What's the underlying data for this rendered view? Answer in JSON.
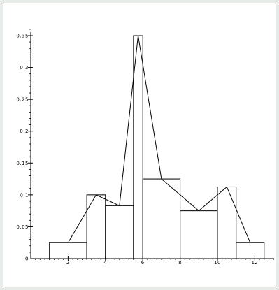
{
  "chart_data": {
    "type": "histogram",
    "title": "",
    "xlabel": "",
    "ylabel": "",
    "xlim": [
      0,
      13
    ],
    "ylim": [
      0,
      0.36
    ],
    "bars": [
      {
        "x0": 1.0,
        "x1": 3.0,
        "height": 0.025
      },
      {
        "x0": 3.0,
        "x1": 4.0,
        "height": 0.1
      },
      {
        "x0": 4.0,
        "x1": 5.5,
        "height": 0.083
      },
      {
        "x0": 5.5,
        "x1": 6.0,
        "height": 0.35
      },
      {
        "x0": 6.0,
        "x1": 8.0,
        "height": 0.125
      },
      {
        "x0": 8.0,
        "x1": 10.0,
        "height": 0.075
      },
      {
        "x0": 10.0,
        "x1": 11.0,
        "height": 0.1125
      },
      {
        "x0": 11.0,
        "x1": 12.5,
        "height": 0.025
      }
    ],
    "polygon": {
      "x": [
        2.0,
        3.5,
        4.75,
        5.75,
        7.0,
        9.0,
        10.5,
        11.75
      ],
      "y": [
        0.025,
        0.1,
        0.083,
        0.35,
        0.125,
        0.075,
        0.1125,
        0.025
      ]
    },
    "x_ticks": {
      "values": [
        2,
        4,
        6,
        8,
        10,
        12
      ],
      "labels": [
        "2",
        "4",
        "6",
        "8",
        "10",
        "12"
      ]
    },
    "y_ticks": {
      "values": [
        0,
        0.05,
        0.1,
        0.15,
        0.2,
        0.25,
        0.3,
        0.35
      ],
      "labels": [
        "0",
        "0.05",
        "0.1",
        "0.15",
        "0.2",
        "0.25",
        "0.3",
        "0.35"
      ]
    },
    "x_minor_step": 0.25,
    "y_minor_step": 0.01,
    "grid": false,
    "legend": "none",
    "colors": {
      "background": "#ffffff",
      "stroke": "#000000",
      "outer": "#e8ece8"
    }
  }
}
